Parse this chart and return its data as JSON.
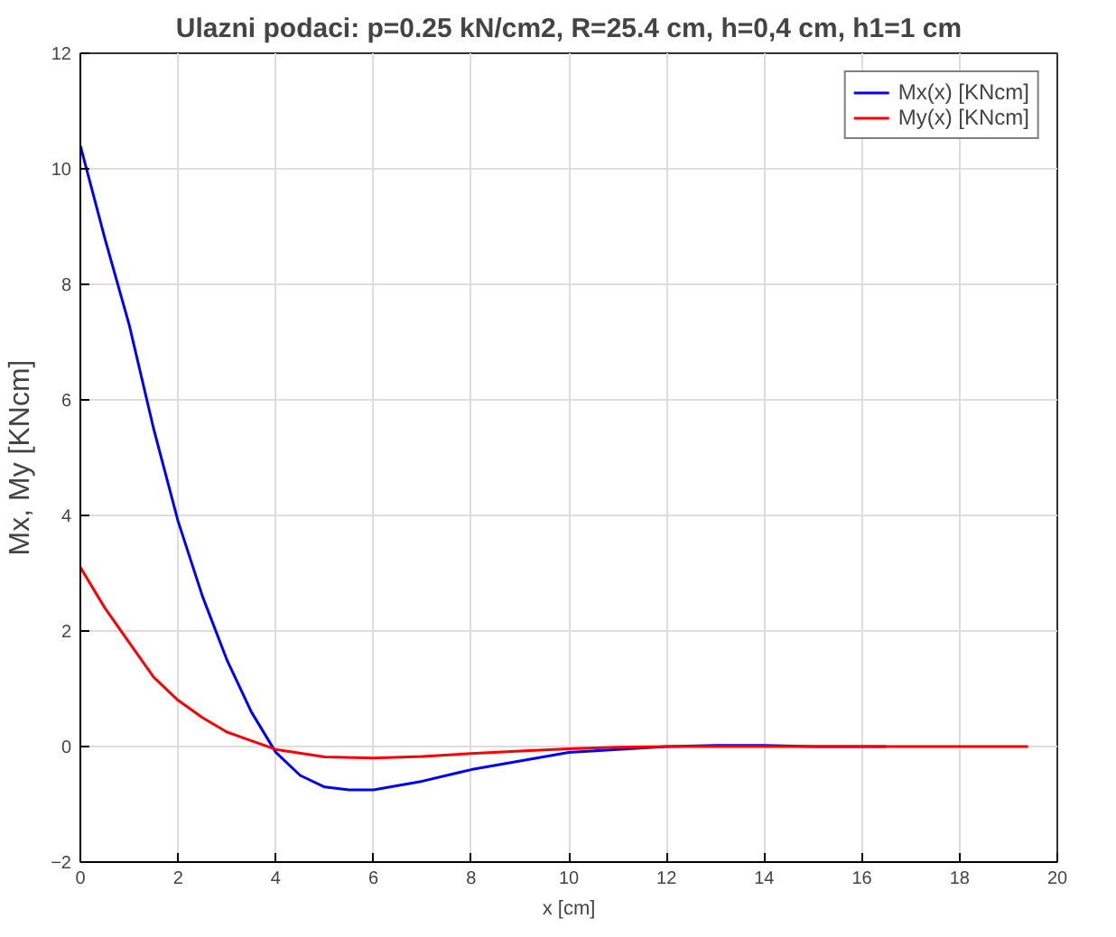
{
  "chart_data": {
    "type": "line",
    "title": "Ulazni podaci: p=0.25 kN/cm2, R=25.4 cm, h=0,4 cm, h1=1 cm",
    "xlabel": "x [cm]",
    "ylabel": "Mx, My [KNcm]",
    "xlim": [
      0,
      20
    ],
    "xticks": [
      0,
      2,
      4,
      6,
      8,
      10,
      12,
      14,
      16,
      18,
      20
    ],
    "ylim": [
      -2,
      12
    ],
    "yticks": [
      -2,
      0,
      2,
      4,
      6,
      8,
      10,
      12
    ],
    "grid": true,
    "legend": "top right",
    "line_style": "solid",
    "series": [
      {
        "name": "Mx(x) [KNcm]",
        "color": "#0000ff",
        "x": [
          0,
          0.5,
          1,
          1.5,
          2,
          2.5,
          3,
          3.5,
          4,
          4.5,
          5,
          5.5,
          6,
          7,
          8,
          9,
          10,
          11,
          12,
          13,
          14,
          15,
          16.5
        ],
        "values": [
          10.4,
          8.8,
          7.3,
          5.5,
          3.9,
          2.6,
          1.5,
          0.6,
          -0.1,
          -0.5,
          -0.7,
          -0.75,
          -0.75,
          -0.6,
          -0.4,
          -0.25,
          -0.1,
          -0.05,
          0,
          0.02,
          0.02,
          0,
          0
        ]
      },
      {
        "name": "My(x) [KNcm]",
        "color": "#ff0000",
        "x": [
          0,
          0.5,
          1,
          1.5,
          2,
          2.5,
          3,
          3.5,
          4,
          5,
          6,
          7,
          8,
          9,
          10,
          11,
          12,
          14,
          16,
          19.4
        ],
        "values": [
          3.1,
          2.4,
          1.8,
          1.2,
          0.8,
          0.5,
          0.25,
          0.1,
          -0.05,
          -0.18,
          -0.2,
          -0.17,
          -0.12,
          -0.08,
          -0.04,
          -0.01,
          0,
          0,
          0,
          0
        ]
      }
    ]
  }
}
